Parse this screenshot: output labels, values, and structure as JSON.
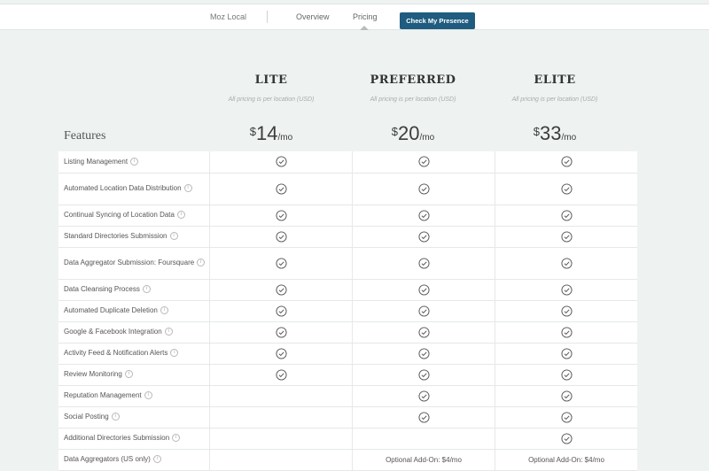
{
  "nav": {
    "brand": "Moz Local",
    "overview": "Overview",
    "pricing": "Pricing",
    "cta": "Check My Presence"
  },
  "features_label": "Features",
  "plans": [
    {
      "name": "LITE",
      "note": "All pricing is per location (USD)",
      "currency": "$",
      "price": "14",
      "period": "/mo"
    },
    {
      "name": "PREFERRED",
      "note": "All pricing is per location (USD)",
      "currency": "$",
      "price": "20",
      "period": "/mo"
    },
    {
      "name": "ELITE",
      "note": "All pricing is per location (USD)",
      "currency": "$",
      "price": "33",
      "period": "/mo"
    }
  ],
  "features": [
    {
      "label": "Listing Management",
      "values": [
        "check",
        "check",
        "check"
      ]
    },
    {
      "label": "Automated Location Data Distribution",
      "values": [
        "check",
        "check",
        "check"
      ]
    },
    {
      "label": "Continual Syncing of Location Data",
      "values": [
        "check",
        "check",
        "check"
      ]
    },
    {
      "label": "Standard Directories Submission",
      "values": [
        "check",
        "check",
        "check"
      ]
    },
    {
      "label": "Data Aggregator Submission: Foursquare",
      "values": [
        "check",
        "check",
        "check"
      ]
    },
    {
      "label": "Data Cleansing Process",
      "values": [
        "check",
        "check",
        "check"
      ]
    },
    {
      "label": "Automated Duplicate Deletion",
      "values": [
        "check",
        "check",
        "check"
      ]
    },
    {
      "label": "Google & Facebook Integration",
      "values": [
        "check",
        "check",
        "check"
      ]
    },
    {
      "label": "Activity Feed & Notification Alerts",
      "values": [
        "check",
        "check",
        "check"
      ]
    },
    {
      "label": "Review Monitoring",
      "values": [
        "check",
        "check",
        "check"
      ]
    },
    {
      "label": "Reputation Management",
      "values": [
        "",
        "check",
        "check"
      ]
    },
    {
      "label": "Social Posting",
      "values": [
        "",
        "check",
        "check"
      ]
    },
    {
      "label": "Additional Directories Submission",
      "values": [
        "",
        "",
        "check"
      ]
    },
    {
      "label": "Data Aggregators (US only)",
      "values": [
        "",
        "Optional Add-On: $4/mo",
        "Optional Add-On: $4/mo"
      ]
    }
  ],
  "colors": {
    "accent": "#1f5c7f",
    "background": "#eef3f1"
  },
  "icons": {
    "check": "check-circle-icon",
    "info": "info-icon"
  }
}
